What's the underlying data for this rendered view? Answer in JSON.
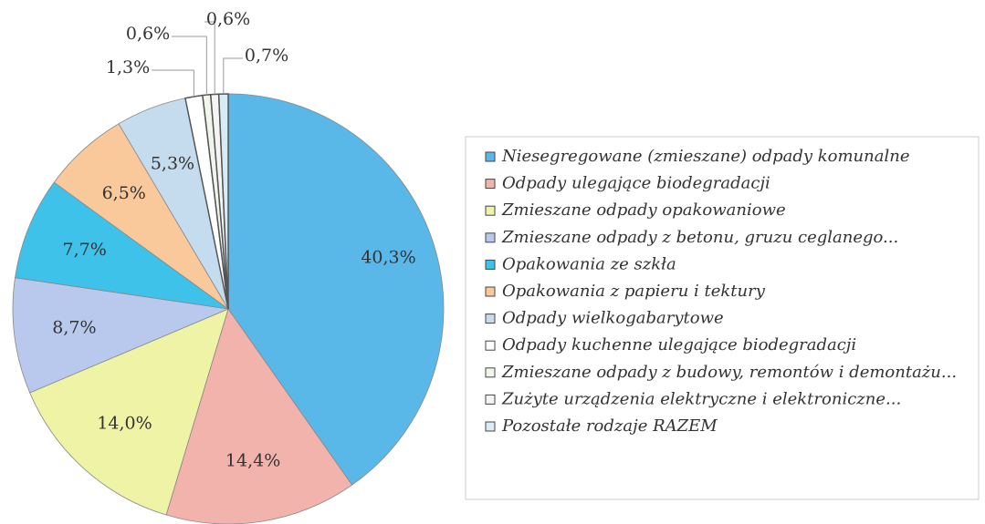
{
  "chart_data": {
    "type": "pie",
    "categories": [
      "Niesegregowane (zmieszane) odpady komunalne",
      "Odpady ulegające biodegradacji",
      "Zmieszane odpady opakowaniowe",
      "Zmieszane odpady z betonu, gruzu ceglanego...",
      "Opakowania ze szkła",
      "Opakowania z papieru i tektury",
      "Odpady wielkogabarytowe",
      "Odpady kuchenne ulegające biodegradacji",
      "Zmieszane odpady z budowy, remontów i demontażu...",
      "Zużyte urządzenia elektryczne i elektroniczne...",
      "Pozostałe rodzaje RAZEM"
    ],
    "values": [
      40.3,
      14.4,
      14.0,
      8.7,
      7.7,
      6.5,
      5.3,
      1.3,
      0.6,
      0.6,
      0.7
    ],
    "value_labels": [
      "40,3%",
      "14,4%",
      "14,0%",
      "8,7%",
      "7,7%",
      "6,5%",
      "5,3%",
      "1,3%",
      "0,6%",
      "0,6%",
      "0,7%"
    ],
    "colors": [
      "#5ab8e8",
      "#f3b3ad",
      "#eef3a6",
      "#b9c9ee",
      "#3fc2ea",
      "#f9c99b",
      "#c4dcee",
      "#ffffff",
      "#f1f6ec",
      "#f4f4f4",
      "#d8ecf6"
    ],
    "legend": "right"
  }
}
